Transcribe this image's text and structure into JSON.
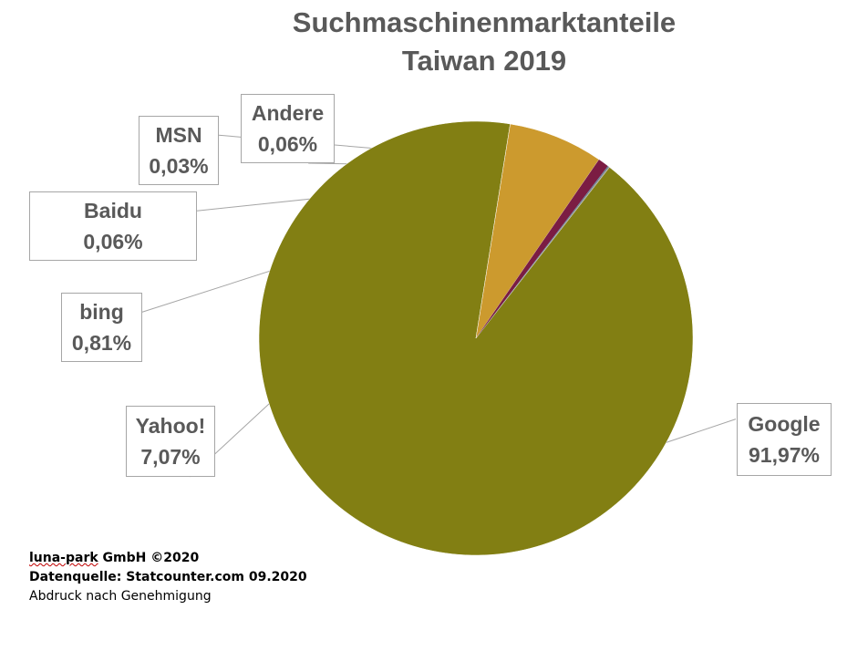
{
  "chart_data": {
    "type": "pie",
    "title": [
      "Suchmaschinenmarktanteile",
      "Taiwan 2019"
    ],
    "slices": [
      {
        "label": "Google",
        "value": 91.97,
        "display": "91,97%",
        "color": "#827f13"
      },
      {
        "label": "Yahoo!",
        "value": 7.07,
        "display": "7,07%",
        "color": "#cc9a2e"
      },
      {
        "label": "bing",
        "value": 0.81,
        "display": "0,81%",
        "color": "#7b1c43"
      },
      {
        "label": "Baidu",
        "value": 0.06,
        "display": "0,06%",
        "color": "#5b8ba6"
      },
      {
        "label": "MSN",
        "value": 0.03,
        "display": "0,03%",
        "color": "#4a4a4a"
      },
      {
        "label": "Andere",
        "value": 0.06,
        "display": "0,06%",
        "color": "#a6a6a6"
      }
    ],
    "legend": "none",
    "data_labels": "callout"
  },
  "footer": {
    "brand": "luna-park",
    "brand_rest": " GmbH ©2020",
    "source": "Datenquelle: Statcounter.com 09.2020",
    "note": "Abdruck nach Genehmigung"
  }
}
